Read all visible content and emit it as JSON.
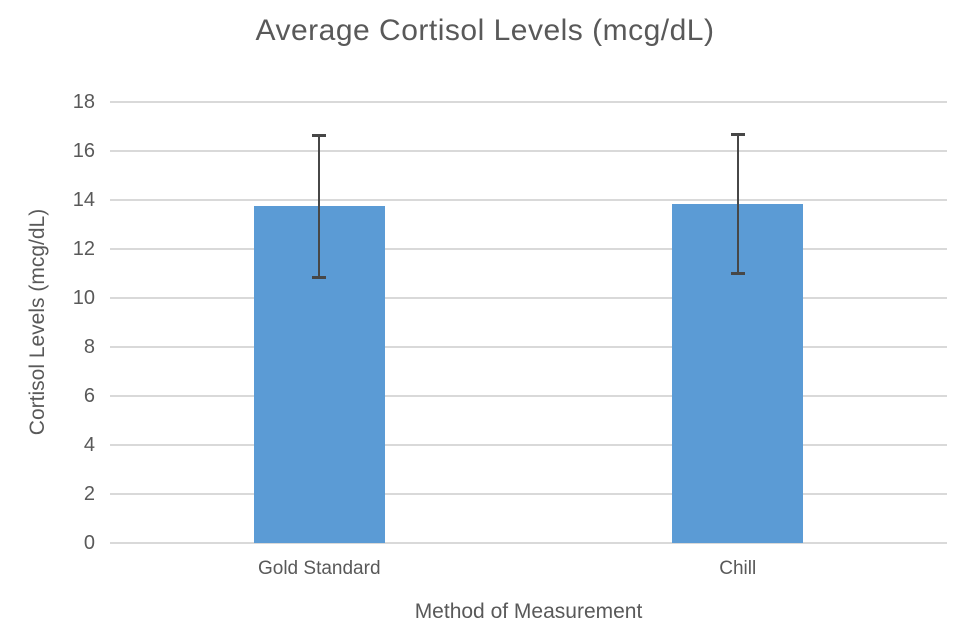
{
  "chart_data": {
    "type": "bar",
    "title": "Average Cortisol Levels (mcg/dL)",
    "xlabel": "Method of Measurement",
    "ylabel": "Cortisol Levels (mcg/dL)",
    "categories": [
      "Gold Standard",
      "Chill"
    ],
    "values": [
      13.75,
      13.85
    ],
    "error_bars": [
      {
        "low": 10.8,
        "high": 16.65
      },
      {
        "low": 11.0,
        "high": 16.7
      }
    ],
    "ylim": [
      0,
      18
    ],
    "yticks": [
      0,
      2,
      4,
      6,
      8,
      10,
      12,
      14,
      16,
      18
    ],
    "grid": true,
    "legend_position": "none"
  },
  "colors": {
    "bar": "#5B9BD5",
    "gridline": "#D9D9D9",
    "axis_line": "#D9D9D9",
    "error_bar": "#474747",
    "text": "#595959"
  }
}
